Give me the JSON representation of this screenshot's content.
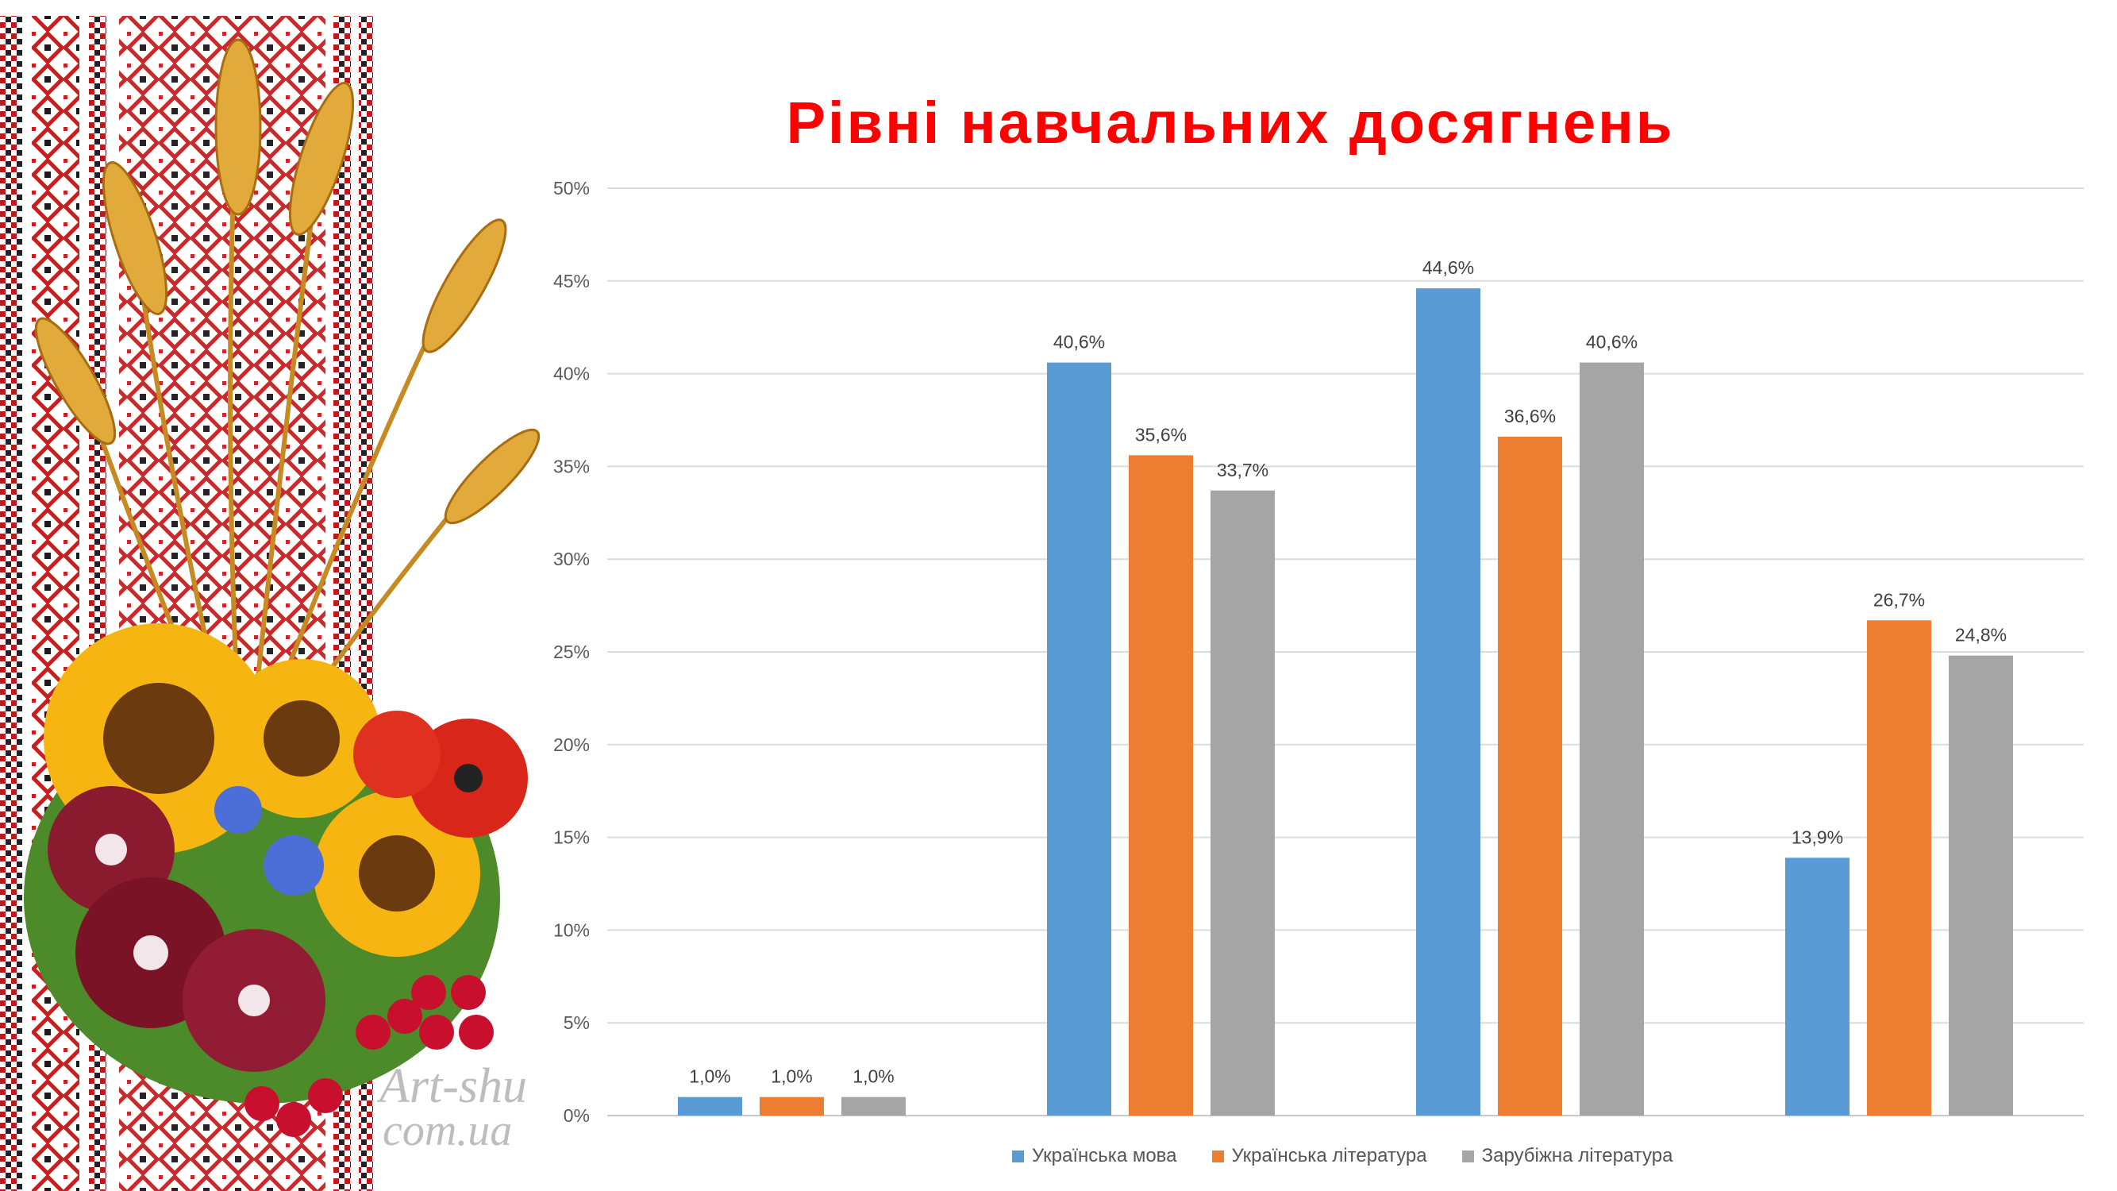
{
  "watermark": {
    "line1": "Art-shu",
    "line2": "com.ua"
  },
  "chart_data": {
    "type": "bar",
    "title": "Рівні навчальних досягнень",
    "categories": [
      "",
      "",
      "",
      ""
    ],
    "series": [
      {
        "name": "Українська мова",
        "color": "#5b9bd5",
        "values": [
          1.0,
          40.6,
          44.6,
          13.9
        ],
        "labels": [
          "1,0%",
          "40,6%",
          "44,6%",
          "13,9%"
        ]
      },
      {
        "name": "Українська література",
        "color": "#ed7d31",
        "values": [
          1.0,
          35.6,
          36.6,
          26.7
        ],
        "labels": [
          "1,0%",
          "35,6%",
          "36,6%",
          "26,7%"
        ]
      },
      {
        "name": "Зарубіжна література",
        "color": "#a5a5a5",
        "values": [
          1.0,
          33.7,
          40.6,
          24.8
        ],
        "labels": [
          "1,0%",
          "33,7%",
          "40,6%",
          "24,8%"
        ]
      }
    ],
    "ylim": [
      0,
      50
    ],
    "yticks": [
      "0%",
      "5%",
      "10%",
      "15%",
      "20%",
      "25%",
      "30%",
      "35%",
      "40%",
      "45%",
      "50%"
    ],
    "grid": true,
    "legend": "bottom"
  }
}
